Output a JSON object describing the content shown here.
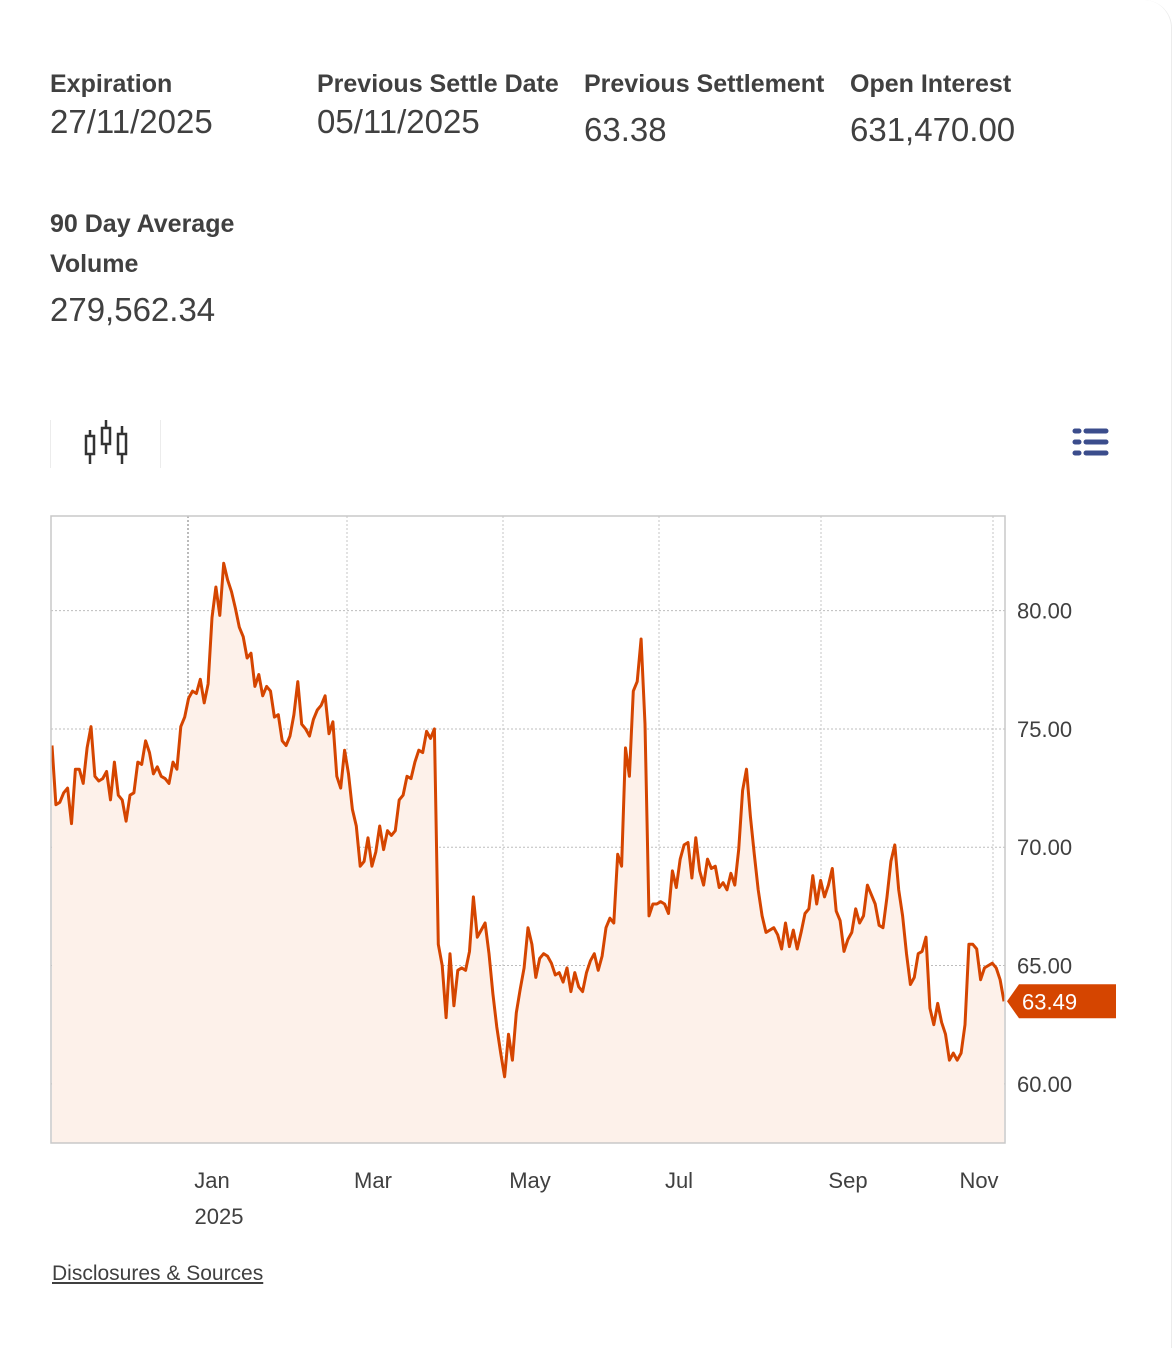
{
  "stats": {
    "expiration": {
      "label": "Expiration",
      "value": "27/11/2025"
    },
    "prev_settle_date": {
      "label": "Previous Settle Date",
      "value": "05/11/2025"
    },
    "prev_settlement": {
      "label": "Previous Settlement",
      "value": "63.38"
    },
    "open_interest": {
      "label": "Open Interest",
      "value": "631,470.00"
    },
    "avg_volume": {
      "label": "90 Day Average Volume",
      "value": "279,562.34"
    }
  },
  "toolbar": {
    "chart_type_icon": "candlestick-icon",
    "menu_icon": "menu-list-icon"
  },
  "colors": {
    "line": "#d54500",
    "area_fill": "#fdf1ea",
    "badge": "#d54500",
    "menu_icon": "#3b4d8c"
  },
  "chart_data": {
    "type": "area",
    "title": "",
    "xlabel": "",
    "ylabel": "",
    "ylim": [
      57.5,
      84.0
    ],
    "yticks": [
      "80.00",
      "75.00",
      "70.00",
      "65.00",
      "60.00"
    ],
    "x_ticks": [
      {
        "label": "Jan",
        "sublabel": "2025"
      },
      {
        "label": "Mar",
        "sublabel": ""
      },
      {
        "label": "May",
        "sublabel": ""
      },
      {
        "label": "Jul",
        "sublabel": ""
      },
      {
        "label": "Sep",
        "sublabel": ""
      },
      {
        "label": "Nov",
        "sublabel": ""
      }
    ],
    "last_value_label": "63.49",
    "grid": true,
    "values": [
      74.3,
      71.8,
      71.9,
      72.3,
      72.5,
      71.0,
      73.3,
      73.3,
      72.7,
      74.2,
      75.1,
      73.0,
      72.8,
      72.9,
      73.2,
      72.0,
      73.6,
      72.2,
      72.0,
      71.1,
      72.2,
      72.3,
      73.6,
      73.5,
      74.5,
      74.0,
      73.1,
      73.4,
      73.0,
      72.9,
      72.7,
      73.6,
      73.3,
      75.1,
      75.5,
      76.3,
      76.6,
      76.5,
      77.1,
      76.1,
      76.9,
      79.7,
      81.0,
      79.8,
      82.0,
      81.3,
      80.8,
      80.1,
      79.3,
      78.9,
      78.0,
      78.2,
      76.8,
      77.3,
      76.4,
      76.8,
      76.6,
      75.5,
      75.6,
      74.5,
      74.3,
      74.7,
      75.6,
      77.0,
      75.2,
      75.0,
      74.7,
      75.4,
      75.8,
      76.0,
      76.4,
      74.8,
      75.3,
      73.0,
      72.5,
      74.1,
      73.1,
      71.6,
      70.9,
      69.2,
      69.4,
      70.4,
      69.2,
      69.8,
      70.9,
      69.9,
      70.7,
      70.5,
      70.7,
      72.0,
      72.2,
      73.0,
      72.9,
      73.6,
      74.1,
      74.0,
      74.9,
      74.6,
      75.0,
      65.9,
      65.0,
      62.8,
      65.5,
      63.3,
      64.8,
      64.9,
      64.8,
      65.6,
      67.9,
      66.2,
      66.5,
      66.8,
      65.5,
      63.8,
      62.4,
      61.3,
      60.3,
      62.1,
      61.0,
      63.0,
      64.0,
      64.9,
      66.6,
      65.9,
      64.5,
      65.3,
      65.5,
      65.4,
      65.1,
      64.6,
      64.7,
      64.3,
      64.9,
      63.9,
      64.7,
      64.1,
      63.9,
      64.7,
      65.2,
      65.5,
      64.8,
      65.4,
      66.6,
      67.0,
      66.8,
      69.7,
      69.2,
      74.2,
      73.0,
      76.6,
      77.0,
      78.8,
      75.2,
      67.1,
      67.6,
      67.6,
      67.7,
      67.6,
      67.2,
      69.0,
      68.3,
      69.5,
      70.1,
      70.2,
      68.7,
      70.4,
      69.0,
      68.4,
      69.5,
      69.1,
      69.2,
      68.3,
      68.5,
      68.2,
      68.9,
      68.4,
      69.9,
      72.4,
      73.3,
      71.3,
      69.7,
      68.2,
      67.1,
      66.4,
      66.5,
      66.6,
      66.3,
      65.7,
      66.8,
      65.8,
      66.5,
      65.7,
      66.4,
      67.2,
      67.4,
      68.8,
      67.6,
      68.6,
      67.9,
      68.4,
      69.1,
      67.3,
      66.9,
      65.6,
      66.1,
      66.4,
      67.4,
      66.8,
      67.1,
      68.4,
      68.0,
      67.6,
      66.7,
      66.6,
      67.9,
      69.4,
      70.1,
      68.2,
      67.1,
      65.5,
      64.2,
      64.5,
      65.5,
      65.6,
      66.2,
      63.2,
      62.5,
      63.4,
      62.6,
      62.1,
      61.0,
      61.3,
      61.0,
      61.3,
      62.5,
      65.9,
      65.9,
      65.7,
      64.4,
      64.9,
      65.0,
      65.1,
      64.9,
      64.4,
      63.49
    ]
  },
  "footer": {
    "disclosures_label": "Disclosures & Sources"
  }
}
